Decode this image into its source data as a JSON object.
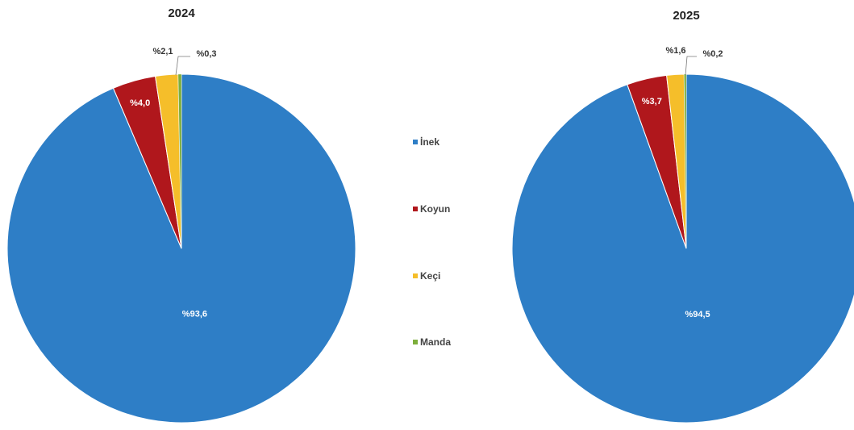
{
  "chart_data": [
    {
      "type": "pie",
      "title": "2024",
      "categories": [
        "İnek",
        "Koyun",
        "Keçi",
        "Manda"
      ],
      "values": [
        93.6,
        4.0,
        2.1,
        0.3
      ],
      "labels": [
        "%93,6",
        "%4,0",
        "%2,1",
        "%0,3"
      ],
      "colors": [
        "#2E7EC6",
        "#B0171C",
        "#F5BE2A",
        "#7DAE3C"
      ]
    },
    {
      "type": "pie",
      "title": "2025",
      "categories": [
        "İnek",
        "Koyun",
        "Keçi",
        "Manda"
      ],
      "values": [
        94.5,
        3.7,
        1.6,
        0.2
      ],
      "labels": [
        "%94,5",
        "%3,7",
        "%1,6",
        "%0,2"
      ],
      "colors": [
        "#2E7EC6",
        "#B0171C",
        "#F5BE2A",
        "#7DAE3C"
      ]
    }
  ],
  "legend": {
    "items": [
      {
        "label": "İnek",
        "color": "#2E7EC6"
      },
      {
        "label": "Koyun",
        "color": "#B0171C"
      },
      {
        "label": "Keçi",
        "color": "#F5BE2A"
      },
      {
        "label": "Manda",
        "color": "#7DAE3C"
      }
    ]
  }
}
